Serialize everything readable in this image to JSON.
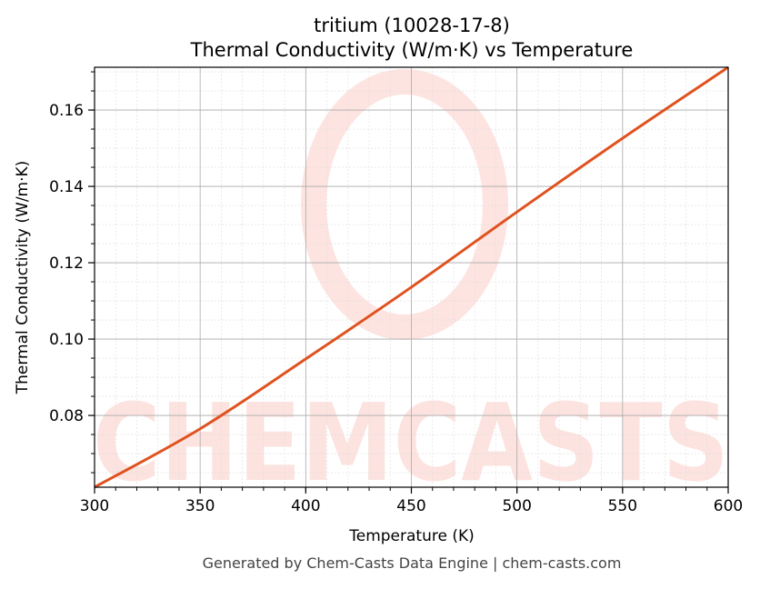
{
  "chart_data": {
    "type": "line",
    "title_line1": "tritium (10028-17-8)",
    "title_line2": "Thermal Conductivity (W/m·K) vs Temperature",
    "xlabel": "Temperature (K)",
    "ylabel": "Thermal Conductivity (W/m·K)",
    "xlim": [
      300,
      600
    ],
    "ylim": [
      0.0612,
      0.1712
    ],
    "xticks": [
      300,
      350,
      400,
      450,
      500,
      550,
      600
    ],
    "yticks": [
      0.08,
      0.1,
      0.12,
      0.14,
      0.16
    ],
    "ytick_labels": [
      "0.08",
      "0.10",
      "0.12",
      "0.14",
      "0.16"
    ],
    "grid": true,
    "line_color": "#e0521f",
    "series": [
      {
        "x": [
          300,
          350,
          400,
          450,
          500,
          550,
          600
        ],
        "y": [
          0.0612,
          0.0765,
          0.0948,
          0.1136,
          0.1333,
          0.1526,
          0.1712
        ]
      }
    ]
  },
  "watermark": "CHEMCASTS",
  "footer": "Generated by Chem-Casts Data Engine | chem-casts.com"
}
